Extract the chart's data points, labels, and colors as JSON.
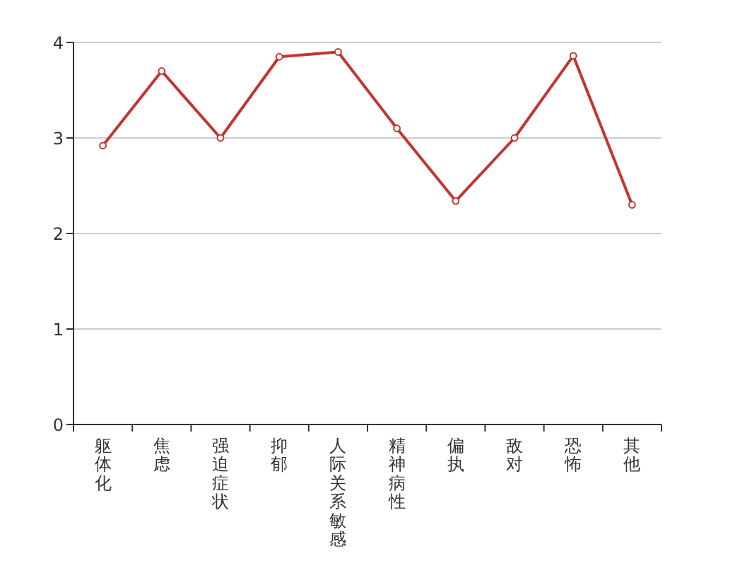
{
  "chart_data": {
    "type": "line",
    "categories": [
      "躯体化",
      "焦虑",
      "强迫症状",
      "抑郁",
      "人际关系敏感",
      "精神病性",
      "偏执",
      "敌对",
      "恐怖",
      "其他"
    ],
    "values": [
      2.92,
      3.7,
      3.0,
      3.85,
      3.9,
      3.1,
      2.34,
      3.0,
      3.86,
      2.3
    ],
    "color": "#c23531",
    "ylim": [
      0,
      4
    ],
    "yticks": [
      0,
      1,
      2,
      3,
      4
    ],
    "grid": "y",
    "marker": "circle"
  }
}
